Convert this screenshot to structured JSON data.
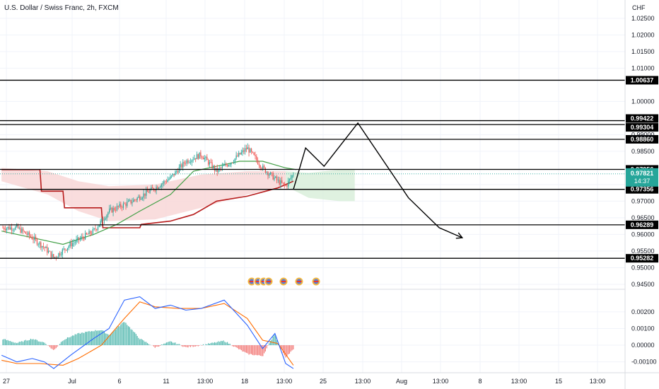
{
  "header": {
    "symbol_title": "U.S. Dollar / Swiss Franc, 2h, FXCM",
    "currency": "CHF"
  },
  "colors": {
    "up": "#26a69a",
    "down": "#ef5350",
    "macd": "#2962ff",
    "signal": "#ff6d00",
    "baseline": "#b71c1c",
    "conversion": "#43a047",
    "cloud_red": "#f8d7d7",
    "cloud_green": "#d9efdb",
    "price_tag": "#26a69a",
    "level_line": "#000000"
  },
  "chart_data": [
    {
      "type": "candlestick",
      "title": "U.S. Dollar / Swiss Franc, 2h, FXCM",
      "ylabel": "CHF",
      "ylim": [
        0.9435,
        1.0305
      ],
      "y_ticks": [
        "1.02500",
        "1.02000",
        "1.01500",
        "1.01000",
        "1.00000",
        "0.99000",
        "0.98500",
        "0.97500",
        "0.97000",
        "0.96500",
        "0.96000",
        "0.95500",
        "0.95000",
        "0.94500"
      ],
      "x_ticks": [
        "27",
        "Jul",
        "6",
        "11",
        "13:00",
        "18",
        "13:00",
        "25",
        "13:00",
        "Aug",
        "13:00",
        "8",
        "13:00",
        "15",
        "13:00"
      ],
      "price_anchors": [
        {
          "day": 0,
          "price": 0.962
        },
        {
          "day": 1,
          "price": 0.959
        },
        {
          "day": 1.8,
          "price": 0.956
        },
        {
          "day": 2.4,
          "price": 0.953
        },
        {
          "day": 3.5,
          "price": 0.957
        },
        {
          "day": 5,
          "price": 0.961
        },
        {
          "day": 6,
          "price": 0.967
        },
        {
          "day": 7.5,
          "price": 0.97
        },
        {
          "day": 9,
          "price": 0.974
        },
        {
          "day": 10,
          "price": 0.977
        },
        {
          "day": 11,
          "price": 0.982
        },
        {
          "day": 12,
          "price": 0.984
        },
        {
          "day": 13,
          "price": 0.979
        },
        {
          "day": 14,
          "price": 0.982
        },
        {
          "day": 15,
          "price": 0.986
        },
        {
          "day": 16,
          "price": 0.98
        },
        {
          "day": 17,
          "price": 0.976
        },
        {
          "day": 17.5,
          "price": 0.9745
        },
        {
          "day": 18,
          "price": 0.9782
        }
      ],
      "current_price": {
        "value": "0.97821",
        "countdown": "14:37"
      },
      "levels": [
        "1.00637",
        "0.99422",
        "0.99304",
        "0.98860",
        "0.97956",
        "0.97356",
        "0.96289",
        "0.95282"
      ],
      "projected_path": [
        {
          "day": 18.0,
          "price": 0.9735
        },
        {
          "day": 18.8,
          "price": 0.986
        },
        {
          "day": 20.0,
          "price": 0.9805
        },
        {
          "day": 22.2,
          "price": 0.9935
        },
        {
          "day": 25.5,
          "price": 0.971
        },
        {
          "day": 27.5,
          "price": 0.962
        },
        {
          "day": 29.0,
          "price": 0.959
        }
      ],
      "ichimoku": {
        "baseline": [
          {
            "day": -1,
            "price": 0.9795
          },
          {
            "day": 1.5,
            "price": 0.9795
          },
          {
            "day": 1.6,
            "price": 0.973
          },
          {
            "day": 3,
            "price": 0.973
          },
          {
            "day": 3.1,
            "price": 0.968
          },
          {
            "day": 5.5,
            "price": 0.968
          },
          {
            "day": 5.6,
            "price": 0.962
          },
          {
            "day": 8,
            "price": 0.962
          },
          {
            "day": 8.1,
            "price": 0.963
          },
          {
            "day": 10,
            "price": 0.964
          },
          {
            "day": 11.5,
            "price": 0.966
          },
          {
            "day": 13,
            "price": 0.97
          },
          {
            "day": 15,
            "price": 0.9715
          },
          {
            "day": 17,
            "price": 0.974
          },
          {
            "day": 18,
            "price": 0.976
          }
        ],
        "conversion": [
          {
            "day": -1,
            "price": 0.961
          },
          {
            "day": 1,
            "price": 0.959
          },
          {
            "day": 3,
            "price": 0.957
          },
          {
            "day": 5,
            "price": 0.96
          },
          {
            "day": 6.5,
            "price": 0.963
          },
          {
            "day": 8,
            "price": 0.967
          },
          {
            "day": 10,
            "price": 0.972
          },
          {
            "day": 11.5,
            "price": 0.979
          },
          {
            "day": 13,
            "price": 0.9805
          },
          {
            "day": 14.5,
            "price": 0.982
          },
          {
            "day": 16,
            "price": 0.982
          },
          {
            "day": 17.5,
            "price": 0.98
          },
          {
            "day": 18.2,
            "price": 0.9795
          }
        ],
        "cloud_red": [
          {
            "day": -1,
            "top": 0.98,
            "bot": 0.976
          },
          {
            "day": 2,
            "top": 0.979,
            "bot": 0.972
          },
          {
            "day": 4,
            "top": 0.976,
            "bot": 0.967
          },
          {
            "day": 6,
            "top": 0.9745,
            "bot": 0.964
          },
          {
            "day": 9,
            "top": 0.975,
            "bot": 0.9645
          },
          {
            "day": 12,
            "top": 0.978,
            "bot": 0.968
          },
          {
            "day": 15,
            "top": 0.979,
            "bot": 0.972
          },
          {
            "day": 17.5,
            "top": 0.979,
            "bot": 0.9745
          }
        ],
        "cloud_green": [
          {
            "day": 17.5,
            "top": 0.979,
            "bot": 0.9745
          },
          {
            "day": 19,
            "top": 0.9785,
            "bot": 0.971
          },
          {
            "day": 21,
            "top": 0.9795,
            "bot": 0.97
          },
          {
            "day": 22,
            "top": 0.9795,
            "bot": 0.97
          }
        ]
      }
    },
    {
      "type": "line",
      "ylim": [
        -0.00165,
        0.00335
      ],
      "y_ticks": [
        "0.00200",
        "0.00100",
        "0.00000",
        "-0.00100"
      ],
      "series": [
        {
          "role": "macd",
          "points": [
            {
              "day": -1,
              "v": -0.0006
            },
            {
              "day": 0,
              "v": -0.001
            },
            {
              "day": 1,
              "v": -0.0008
            },
            {
              "day": 1.8,
              "v": -0.001
            },
            {
              "day": 2.4,
              "v": -0.0014
            },
            {
              "day": 3.5,
              "v": -0.0006
            },
            {
              "day": 5,
              "v": 0.0004
            },
            {
              "day": 6,
              "v": 0.001
            },
            {
              "day": 7,
              "v": 0.0027
            },
            {
              "day": 8,
              "v": 0.0029
            },
            {
              "day": 9,
              "v": 0.0022
            },
            {
              "day": 10,
              "v": 0.0024
            },
            {
              "day": 11,
              "v": 0.0021
            },
            {
              "day": 12,
              "v": 0.0022
            },
            {
              "day": 13.5,
              "v": 0.0027
            },
            {
              "day": 15,
              "v": 0.0012
            },
            {
              "day": 16,
              "v": -0.0002
            },
            {
              "day": 16.8,
              "v": 0.0007
            },
            {
              "day": 17.5,
              "v": -0.0011
            },
            {
              "day": 18,
              "v": -0.0014
            }
          ]
        },
        {
          "role": "signal",
          "points": [
            {
              "day": -1,
              "v": -0.0009
            },
            {
              "day": 0,
              "v": -0.0011
            },
            {
              "day": 1.5,
              "v": -0.0011
            },
            {
              "day": 3,
              "v": -0.0012
            },
            {
              "day": 4,
              "v": -0.0008
            },
            {
              "day": 5.5,
              "v": 0.0
            },
            {
              "day": 7,
              "v": 0.0016
            },
            {
              "day": 8,
              "v": 0.0026
            },
            {
              "day": 9,
              "v": 0.0023
            },
            {
              "day": 10.5,
              "v": 0.0022
            },
            {
              "day": 12,
              "v": 0.0022
            },
            {
              "day": 13.5,
              "v": 0.0025
            },
            {
              "day": 15,
              "v": 0.0016
            },
            {
              "day": 16,
              "v": 0.0003
            },
            {
              "day": 17,
              "v": 0.0001
            },
            {
              "day": 18,
              "v": -0.0012
            }
          ]
        }
      ]
    }
  ]
}
